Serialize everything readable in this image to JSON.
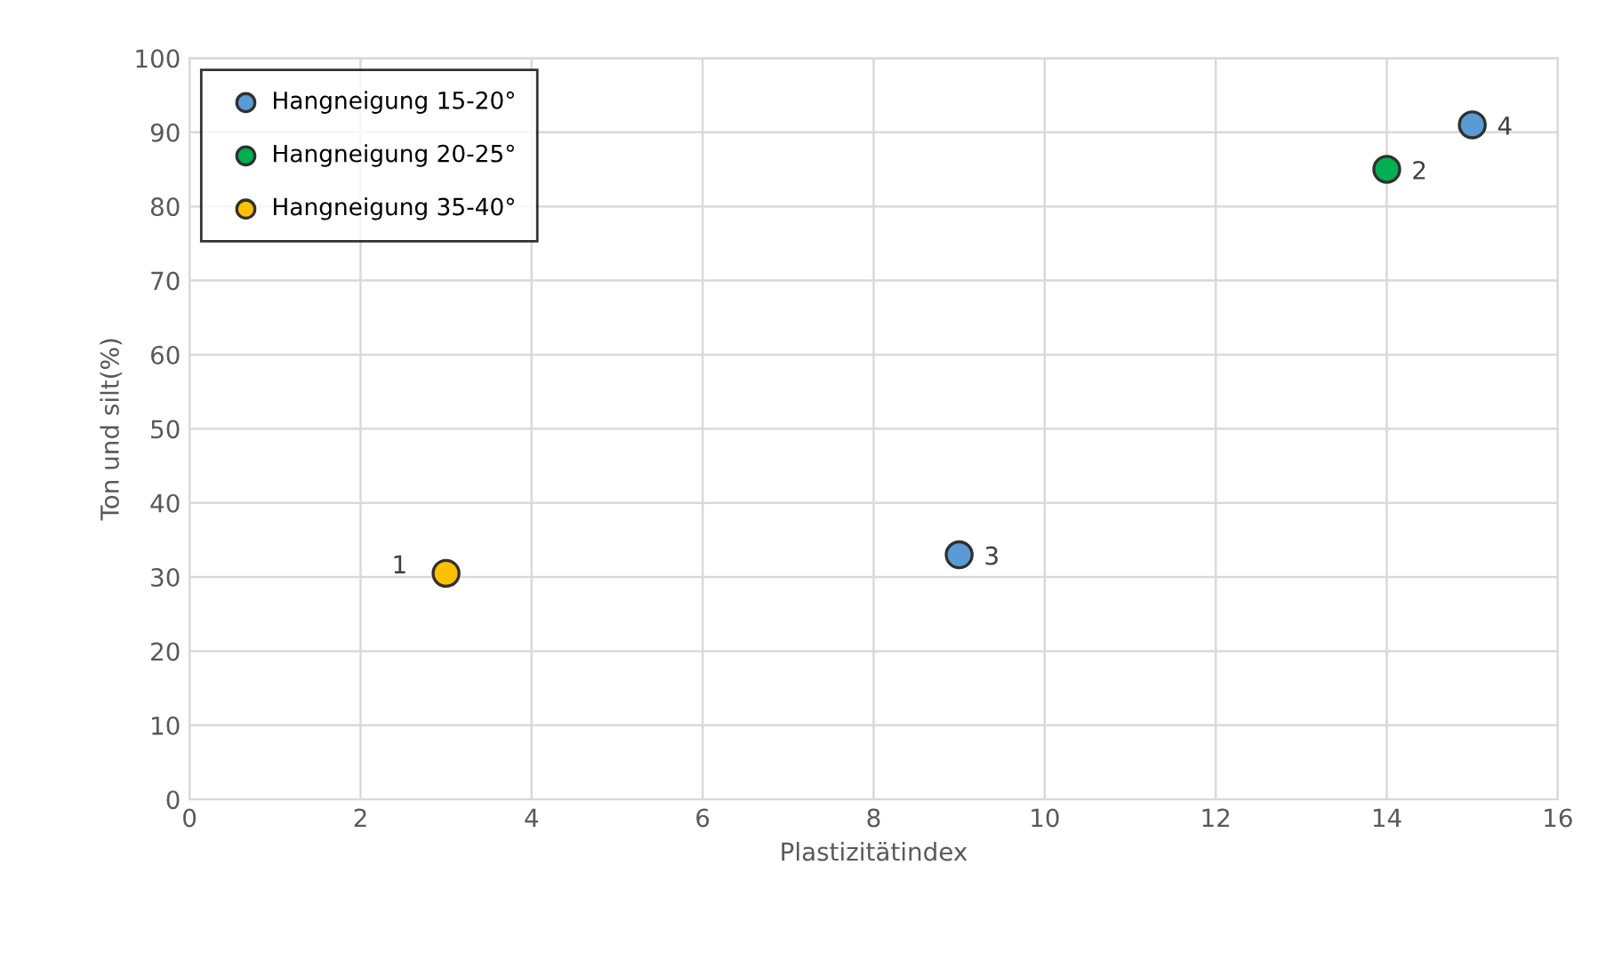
{
  "chart_data": {
    "type": "scatter",
    "xlabel": "Plastizitätindex",
    "ylabel": "Ton und silt(%)",
    "series": [
      {
        "name": "Hangneigung 15-20°",
        "color": "#5b9bd5",
        "x": [
          9,
          15
        ],
        "values": [
          33,
          91
        ]
      },
      {
        "name": "Hangneigung 20-25°",
        "color": "#00b050",
        "x": [
          14
        ],
        "values": [
          85
        ]
      },
      {
        "name": "Hangneigung 35-40°",
        "color": "#ffc000",
        "x": [
          3
        ],
        "values": [
          30.5
        ]
      }
    ],
    "annotations": [
      {
        "text": "1",
        "x": 3,
        "y": 30.5
      },
      {
        "text": "2",
        "x": 14,
        "y": 85
      },
      {
        "text": "3",
        "x": 9,
        "y": 33
      },
      {
        "text": "4",
        "x": 15,
        "y": 91
      }
    ],
    "xlim": [
      0,
      16
    ],
    "xticks": [
      0,
      2,
      4,
      6,
      8,
      10,
      12,
      14,
      16
    ],
    "ylim": [
      0,
      100
    ],
    "yticks": [
      0,
      10,
      20,
      30,
      40,
      50,
      60,
      70,
      80,
      90,
      100
    ],
    "grid": true,
    "legend": "top left",
    "marker": "circle"
  }
}
